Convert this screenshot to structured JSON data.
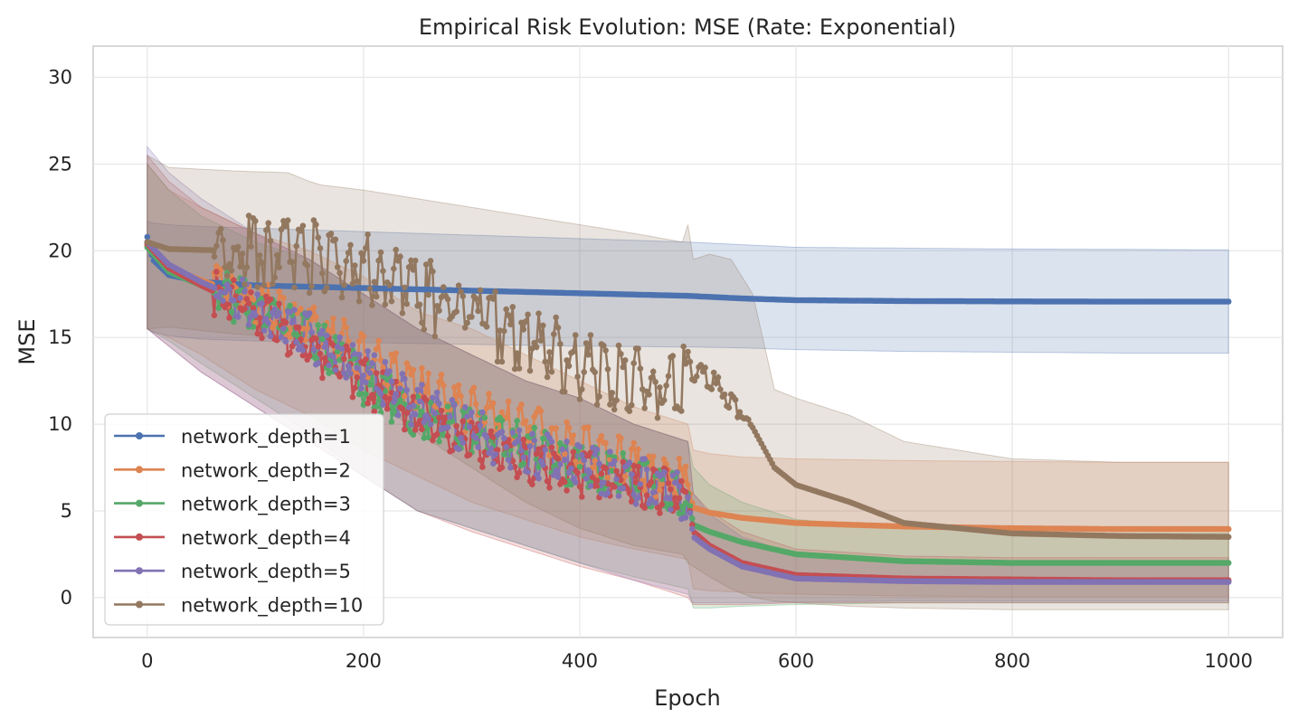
{
  "chart_data": {
    "type": "line",
    "title": "Empirical Risk Evolution: MSE (Rate: Exponential)",
    "xlabel": "Epoch",
    "ylabel": "MSE",
    "xlim": [
      -50,
      1050
    ],
    "ylim": [
      -2.3,
      31.8
    ],
    "xticks": [
      0,
      200,
      400,
      600,
      800,
      1000
    ],
    "yticks": [
      0,
      5,
      10,
      15,
      20,
      25,
      30
    ],
    "grid": true,
    "legend_position": "lower-left",
    "series": [
      {
        "name": "network_depth=1",
        "color": "#4c72b0",
        "x": [
          0,
          5,
          20,
          50,
          100,
          200,
          300,
          400,
          500,
          550,
          600,
          700,
          800,
          900,
          1000
        ],
        "mean": [
          20.8,
          19.5,
          18.6,
          18.2,
          18.0,
          17.85,
          17.7,
          17.55,
          17.4,
          17.25,
          17.15,
          17.1,
          17.08,
          17.07,
          17.07
        ],
        "lower": [
          15.5,
          15.3,
          15.1,
          14.9,
          14.8,
          14.7,
          14.6,
          14.5,
          14.45,
          14.4,
          14.3,
          14.2,
          14.15,
          14.1,
          14.1
        ],
        "upper": [
          21.7,
          21.6,
          21.5,
          21.4,
          21.3,
          21.1,
          20.9,
          20.7,
          20.5,
          20.35,
          20.2,
          20.15,
          20.1,
          20.08,
          20.05
        ]
      },
      {
        "name": "network_depth=2",
        "color": "#dd8452",
        "x": [
          0,
          20,
          50,
          100,
          150,
          200,
          250,
          300,
          350,
          400,
          450,
          500,
          505,
          520,
          550,
          600,
          700,
          800,
          900,
          1000
        ],
        "mean": [
          20.3,
          19.0,
          18.3,
          17.2,
          15.8,
          14.0,
          12.0,
          10.8,
          10.0,
          8.7,
          7.6,
          6.5,
          5.2,
          4.9,
          4.6,
          4.3,
          4.1,
          4.0,
          3.95,
          3.95
        ],
        "lower": [
          15.5,
          15.0,
          14.0,
          12.0,
          10.5,
          8.5,
          7.0,
          5.5,
          4.5,
          3.5,
          2.8,
          2.2,
          0.5,
          0.4,
          0.3,
          0.2,
          0.1,
          0.05,
          0.05,
          0.05
        ],
        "upper": [
          25.0,
          23.5,
          22.5,
          21.0,
          20.0,
          18.5,
          16.5,
          15.5,
          14.0,
          12.5,
          11.0,
          10.0,
          8.5,
          8.3,
          8.1,
          8.0,
          7.9,
          7.85,
          7.8,
          7.8
        ]
      },
      {
        "name": "network_depth=3",
        "color": "#55a868",
        "x": [
          0,
          20,
          50,
          100,
          150,
          200,
          250,
          300,
          350,
          400,
          450,
          500,
          505,
          520,
          550,
          600,
          700,
          800,
          900,
          1000
        ],
        "mean": [
          20.2,
          18.8,
          18.0,
          16.8,
          15.0,
          12.5,
          10.5,
          9.5,
          8.8,
          7.5,
          6.8,
          6.0,
          4.2,
          3.8,
          3.2,
          2.5,
          2.1,
          2.0,
          2.0,
          2.0
        ],
        "lower": [
          15.5,
          14.8,
          13.5,
          11.5,
          9.5,
          7.0,
          5.0,
          4.0,
          3.0,
          2.0,
          1.2,
          0.5,
          -0.6,
          -0.6,
          -0.5,
          -0.4,
          -0.3,
          -0.3,
          -0.3,
          -0.3
        ],
        "upper": [
          25.0,
          23.5,
          22.0,
          20.5,
          19.5,
          17.5,
          15.5,
          14.0,
          12.5,
          11.5,
          10.0,
          9.0,
          7.5,
          6.5,
          5.5,
          4.5,
          4.0,
          3.8,
          3.7,
          3.7
        ]
      },
      {
        "name": "network_depth=4",
        "color": "#c44e52",
        "x": [
          0,
          20,
          50,
          100,
          150,
          200,
          250,
          300,
          350,
          400,
          450,
          500,
          505,
          520,
          550,
          600,
          700,
          800,
          900,
          1000
        ],
        "mean": [
          20.4,
          19.0,
          18.0,
          16.5,
          14.5,
          12.5,
          10.5,
          9.0,
          8.0,
          7.2,
          6.5,
          5.8,
          3.8,
          3.0,
          2.0,
          1.3,
          1.1,
          1.05,
          1.0,
          1.0
        ],
        "lower": [
          15.5,
          14.5,
          13.0,
          11.0,
          9.0,
          7.0,
          5.0,
          3.8,
          2.8,
          1.8,
          1.0,
          0.0,
          -0.4,
          -0.4,
          -0.4,
          -0.3,
          -0.3,
          -0.3,
          -0.3,
          -0.3
        ],
        "upper": [
          25.5,
          24.0,
          22.5,
          21.0,
          19.5,
          17.5,
          15.5,
          14.0,
          12.5,
          11.5,
          10.0,
          9.0,
          6.0,
          5.0,
          3.8,
          2.8,
          2.4,
          2.3,
          2.3,
          2.3
        ]
      },
      {
        "name": "network_depth=5",
        "color": "#8172b3",
        "x": [
          0,
          20,
          50,
          100,
          150,
          200,
          250,
          300,
          350,
          400,
          450,
          500,
          505,
          520,
          550,
          600,
          700,
          800,
          900,
          1000
        ],
        "mean": [
          20.5,
          19.2,
          18.2,
          16.8,
          15.0,
          13.0,
          11.0,
          9.5,
          8.5,
          7.5,
          6.8,
          5.8,
          3.5,
          2.8,
          1.8,
          1.1,
          0.95,
          0.9,
          0.9,
          0.9
        ],
        "lower": [
          15.5,
          14.5,
          13.0,
          11.0,
          9.0,
          7.0,
          5.0,
          4.0,
          3.0,
          2.0,
          1.0,
          0.2,
          -0.3,
          -0.3,
          -0.3,
          -0.25,
          -0.2,
          -0.2,
          -0.2,
          -0.2
        ],
        "upper": [
          26.0,
          24.5,
          23.0,
          21.0,
          19.5,
          17.5,
          15.5,
          14.0,
          12.5,
          11.5,
          10.0,
          9.0,
          6.0,
          4.8,
          3.5,
          2.5,
          2.2,
          2.1,
          2.1,
          2.1
        ]
      },
      {
        "name": "network_depth=10",
        "color": "#937860",
        "x": [
          0,
          20,
          80,
          130,
          150,
          160,
          200,
          250,
          300,
          350,
          400,
          450,
          495,
          500,
          505,
          520,
          540,
          560,
          580,
          600,
          650,
          700,
          800,
          900,
          1000
        ],
        "mean": [
          20.5,
          20.1,
          20.0,
          20.0,
          19.7,
          19.4,
          19.2,
          17.5,
          16.5,
          15.0,
          13.3,
          12.5,
          12.0,
          14.0,
          13.0,
          12.5,
          11.5,
          9.8,
          7.5,
          6.5,
          5.5,
          4.3,
          3.7,
          3.55,
          3.5
        ],
        "lower": [
          15.5,
          15.6,
          15.2,
          15.0,
          14.5,
          14.0,
          12.0,
          9.5,
          7.5,
          5.5,
          4.0,
          3.0,
          2.5,
          2.0,
          1.8,
          1.2,
          0.5,
          0.0,
          -0.2,
          -0.3,
          -0.5,
          -0.6,
          -0.7,
          -0.7,
          -0.7
        ],
        "upper": [
          25.5,
          24.8,
          24.6,
          24.5,
          24.0,
          23.8,
          23.5,
          23.0,
          22.5,
          22.0,
          21.5,
          21.0,
          20.5,
          21.5,
          19.5,
          19.8,
          19.5,
          17.5,
          12.0,
          11.5,
          10.5,
          9.0,
          8.0,
          7.8,
          7.8
        ]
      }
    ]
  }
}
